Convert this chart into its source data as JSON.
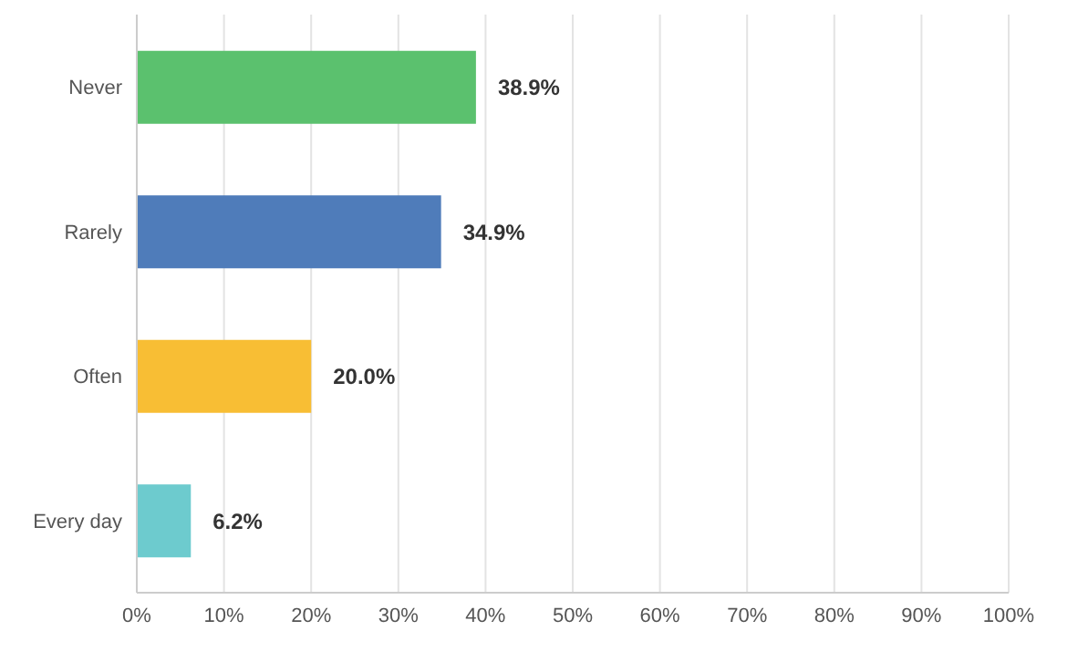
{
  "chart_data": {
    "type": "bar",
    "orientation": "horizontal",
    "categories": [
      "Never",
      "Rarely",
      "Often",
      "Every day"
    ],
    "values": [
      38.9,
      34.9,
      20.0,
      6.2
    ],
    "colors": [
      "#5bc16e",
      "#4f7cba",
      "#f8be34",
      "#6dcbce"
    ],
    "value_labels": [
      "38.9%",
      "34.9%",
      "20.0%",
      "6.2%"
    ],
    "xlim": [
      0,
      100
    ],
    "xticks": [
      {
        "value": 0,
        "label": "0%"
      },
      {
        "value": 10,
        "label": "10%"
      },
      {
        "value": 20,
        "label": "20%"
      },
      {
        "value": 30,
        "label": "30%"
      },
      {
        "value": 40,
        "label": "40%"
      },
      {
        "value": 50,
        "label": "50%"
      },
      {
        "value": 60,
        "label": "60%"
      },
      {
        "value": 70,
        "label": "70%"
      },
      {
        "value": 80,
        "label": "80%"
      },
      {
        "value": 90,
        "label": "90%"
      },
      {
        "value": 100,
        "label": "100%"
      }
    ],
    "grid": "x"
  }
}
